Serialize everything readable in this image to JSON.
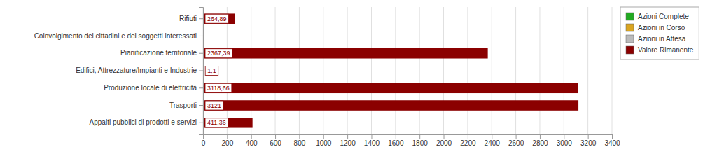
{
  "chart_data": {
    "type": "bar",
    "orientation": "horizontal",
    "categories": [
      "Appalti pubblici di prodotti e servizi",
      "Trasporti",
      "Produzione locale di elettricità",
      "Edifici, Attrezzature/Impianti e Industrie",
      "Pianificazione territoriale",
      "Coinvolgimento dei cittadini e dei soggetti interessati",
      "Rifiuti"
    ],
    "series": [
      {
        "name": "Azioni Complete",
        "color": "#22AA22",
        "values": [
          null,
          null,
          null,
          null,
          null,
          null,
          null
        ]
      },
      {
        "name": "Azioni in Corso",
        "color": "#DAA520",
        "values": [
          null,
          null,
          null,
          null,
          null,
          null,
          null
        ]
      },
      {
        "name": "Azioni in Attesa",
        "color": "#BBBBBB",
        "values": [
          null,
          null,
          null,
          null,
          null,
          null,
          null
        ]
      },
      {
        "name": "Valore Rimanente",
        "color": "#8B0000",
        "values": [
          411.36,
          3121.0,
          3118.66,
          1.1,
          2367.39,
          0.0,
          264.89
        ],
        "value_labels": [
          "411,36",
          "3121",
          "3118,66",
          "1,1",
          "2367,39",
          null,
          "264,89"
        ]
      }
    ],
    "data_labels": true,
    "xlim": [
      0,
      3400
    ],
    "xticks": [
      0,
      200,
      400,
      600,
      800,
      1000,
      1200,
      1400,
      1600,
      1800,
      2000,
      2200,
      2400,
      2600,
      2800,
      3000,
      3200,
      3400
    ],
    "grid": true,
    "legend": "right"
  }
}
